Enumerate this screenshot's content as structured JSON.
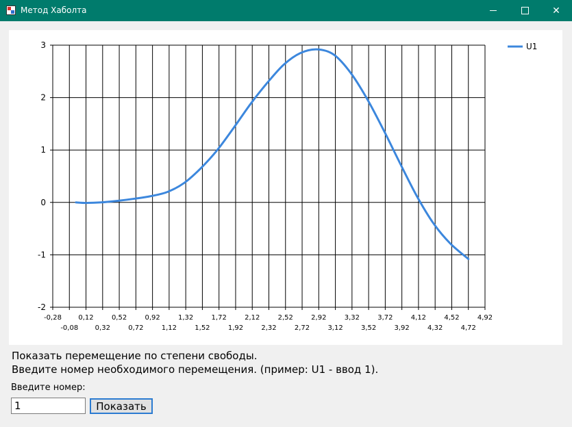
{
  "window": {
    "title": "Метод Хаболта",
    "icon": "app-icon",
    "controls": {
      "minimize": "minimize-icon",
      "maximize": "maximize-icon",
      "close": "✕"
    }
  },
  "chart_data": {
    "type": "line",
    "title": "",
    "xlabel": "",
    "ylabel": "",
    "xlim": [
      -0.28,
      4.92
    ],
    "ylim": [
      -2,
      3
    ],
    "grid": true,
    "legend_position": "top-right",
    "x_ticks_top": [
      "-0,28",
      "0,12",
      "0,52",
      "0,92",
      "1,32",
      "1,72",
      "2,12",
      "2,52",
      "2,92",
      "3,32",
      "3,72",
      "4,12",
      "4,52",
      "4,92"
    ],
    "x_ticks_bottom": [
      "-0,08",
      "0,32",
      "0,72",
      "1,12",
      "1,52",
      "1,92",
      "2,32",
      "2,72",
      "3,12",
      "3,52",
      "3,92",
      "4,32",
      "4,72"
    ],
    "y_ticks": [
      "3",
      "2",
      "1",
      "0",
      "-1",
      "-2"
    ],
    "series": [
      {
        "name": "U1",
        "color": "#3c87dd",
        "x": [
          0.0,
          0.12,
          0.3,
          0.5,
          0.7,
          0.9,
          1.1,
          1.3,
          1.5,
          1.7,
          1.9,
          2.1,
          2.3,
          2.5,
          2.7,
          2.9,
          3.1,
          3.3,
          3.5,
          3.7,
          3.9,
          4.1,
          4.3,
          4.5,
          4.72
        ],
        "y": [
          0.0,
          -0.01,
          0.0,
          0.03,
          0.07,
          0.12,
          0.2,
          0.37,
          0.65,
          1.0,
          1.43,
          1.88,
          2.28,
          2.63,
          2.85,
          2.92,
          2.82,
          2.48,
          1.98,
          1.38,
          0.74,
          0.12,
          -0.4,
          -0.78,
          -1.08
        ]
      }
    ]
  },
  "info": {
    "line1": "Показать перемещение по степени свободы.",
    "line2": "Введите номер необходимого перемещения. (пример: U1 - ввод 1)."
  },
  "input": {
    "label": "Введите номер:",
    "value": "1"
  },
  "show_button": {
    "label": "Показать"
  }
}
